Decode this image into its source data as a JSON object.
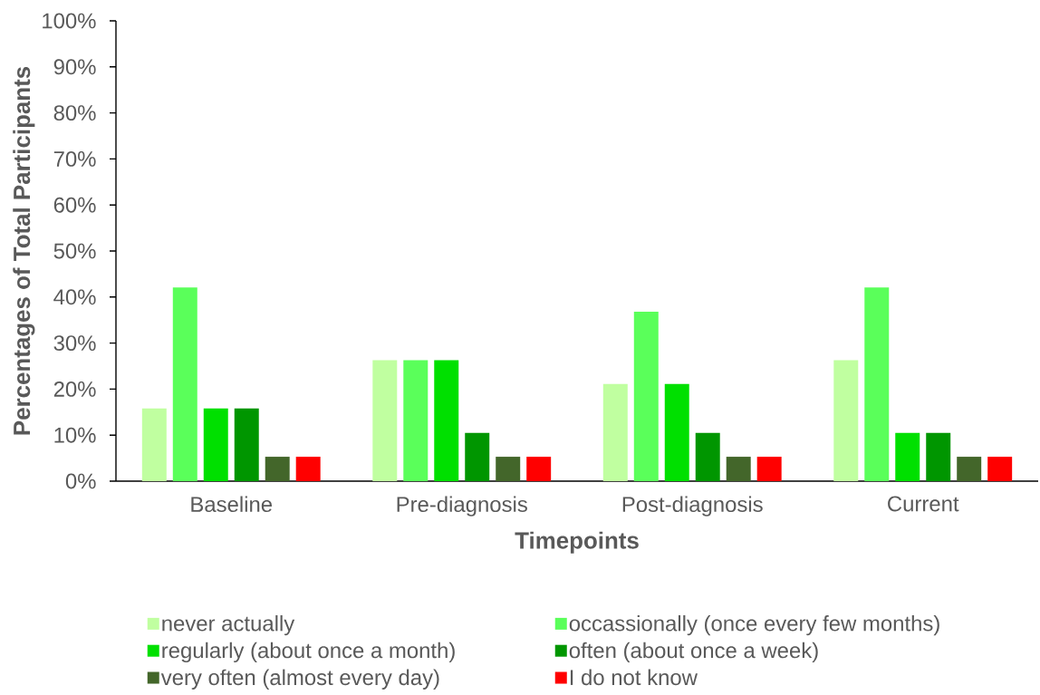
{
  "chart_data": {
    "type": "bar",
    "xlabel": "Timepoints",
    "ylabel": "Percentages of Total Participants",
    "categories": [
      "Baseline",
      "Pre-diagnosis",
      "Post-diagnosis",
      "Current"
    ],
    "series": [
      {
        "name": "never actually",
        "color": "#c0ffa0",
        "values": [
          15.8,
          26.3,
          21.1,
          26.3
        ]
      },
      {
        "name": "occassionally (once every few months)",
        "color": "#5aff5a",
        "values": [
          42.1,
          26.3,
          36.8,
          42.1
        ]
      },
      {
        "name": "regularly (about once a month)",
        "color": "#00e000",
        "values": [
          15.8,
          26.3,
          21.1,
          10.5
        ]
      },
      {
        "name": "often (about once a week)",
        "color": "#009600",
        "values": [
          15.8,
          10.5,
          10.5,
          10.5
        ]
      },
      {
        "name": "very often (almost every day)",
        "color": "#43662a",
        "values": [
          5.3,
          5.3,
          5.3,
          5.3
        ]
      },
      {
        "name": "I do not know",
        "color": "#ff0000",
        "values": [
          5.3,
          5.3,
          5.3,
          5.3
        ]
      }
    ],
    "ylim": [
      0,
      100
    ],
    "yticks": [
      {
        "value": 0,
        "label": "0%"
      },
      {
        "value": 10,
        "label": "10%"
      },
      {
        "value": 20,
        "label": "20%"
      },
      {
        "value": 30,
        "label": "30%"
      },
      {
        "value": 40,
        "label": "40%"
      },
      {
        "value": 50,
        "label": "50%"
      },
      {
        "value": 60,
        "label": "60%"
      },
      {
        "value": 70,
        "label": "70%"
      },
      {
        "value": 80,
        "label": "80%"
      },
      {
        "value": 90,
        "label": "90%"
      },
      {
        "value": 100,
        "label": "100%"
      }
    ],
    "legend": "bottom"
  }
}
